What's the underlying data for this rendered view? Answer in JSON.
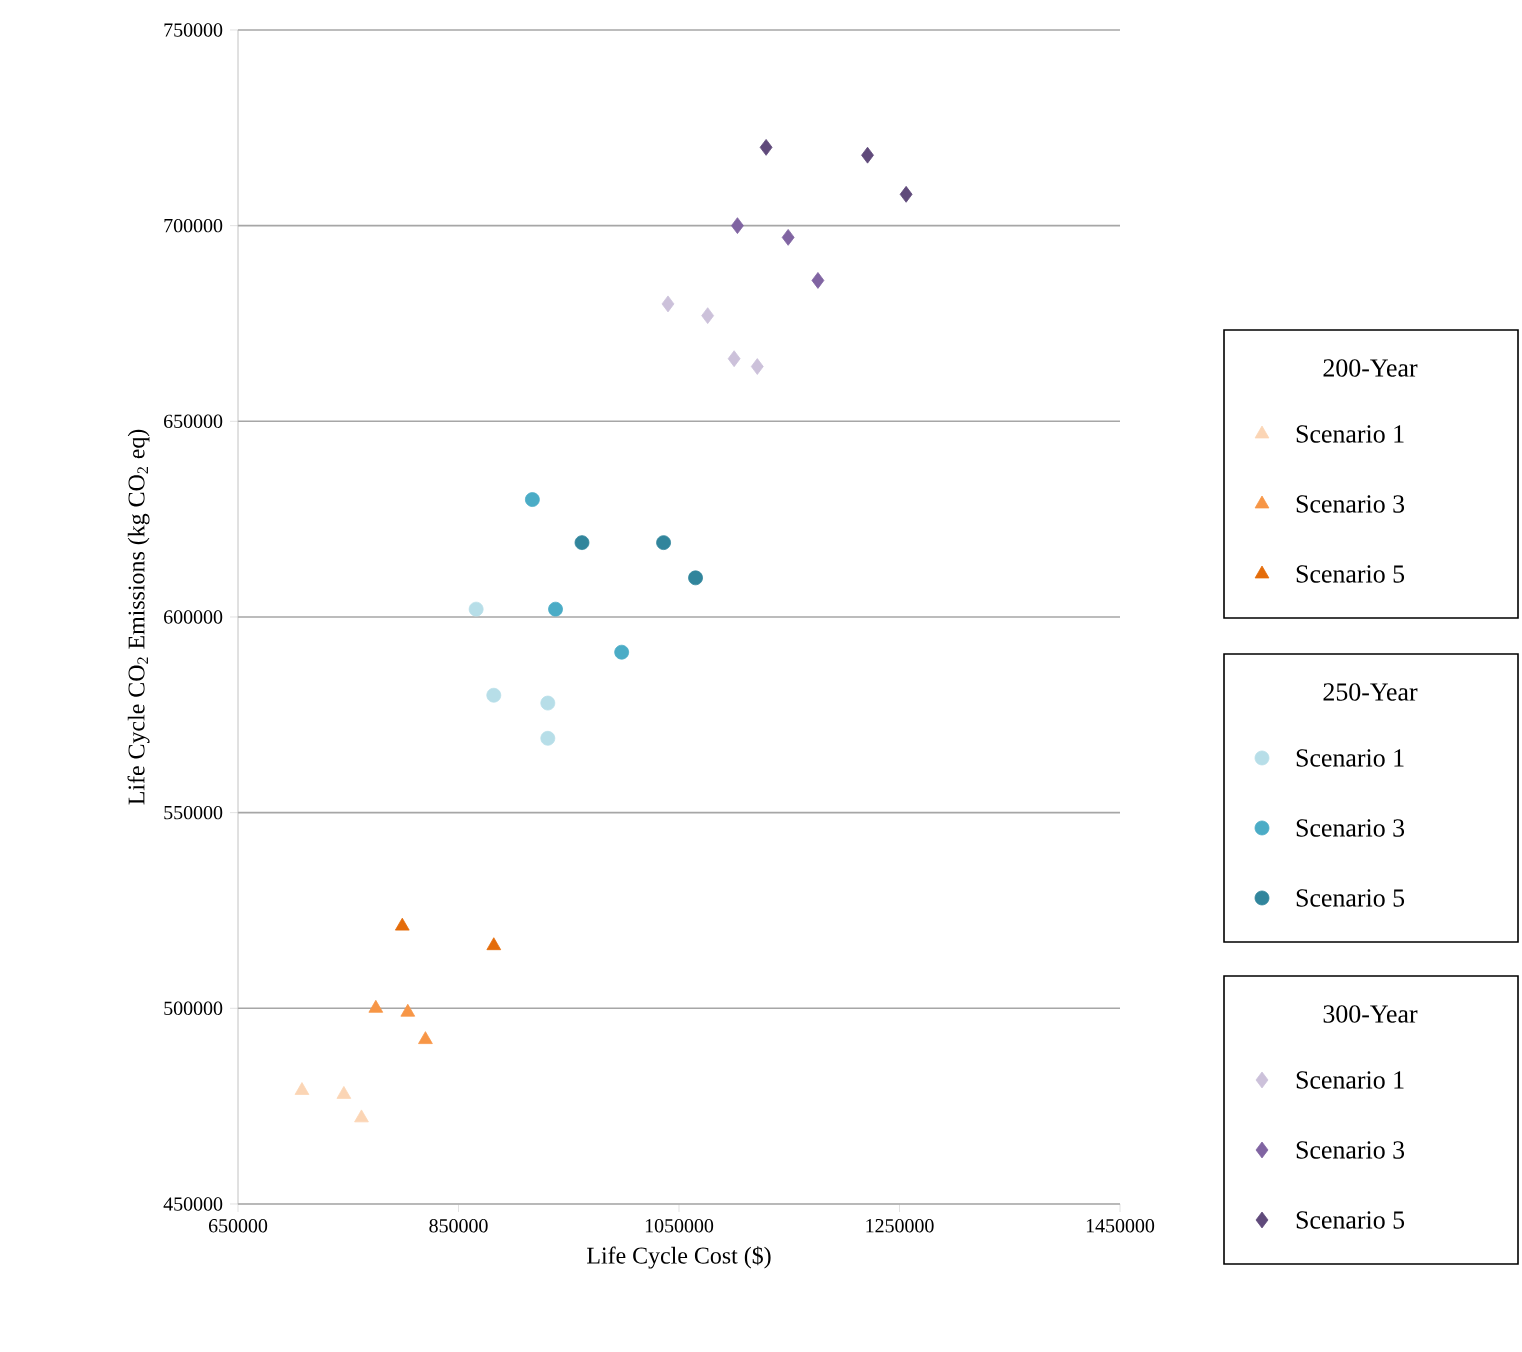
{
  "chart_data": {
    "type": "scatter",
    "xlabel": "Life Cycle Cost ($)",
    "ylabel": "Life Cycle CO$_{2}$ Emissions (kg CO$_{2}$ eq)",
    "annotations": [
      "200-Year",
      "250-Year",
      "300-Year"
    ],
    "xlim": [
      650000,
      1450000
    ],
    "xticks": [
      650000,
      850000,
      1050000,
      1250000,
      1450000
    ],
    "ylim": [
      450000,
      750000
    ],
    "yticks": [
      450000,
      500000,
      550000,
      600000,
      650000,
      700000,
      750000
    ],
    "grid": "y",
    "legend": "right",
    "series": [
      {
        "name": "Scenario 1",
        "color": "#fbd5b5",
        "marker": "triangle",
        "x": [
          708000,
          746000,
          762000
        ],
        "values": [
          479000,
          478000,
          472000
        ]
      },
      {
        "name": "Scenario 3",
        "color": "#f79646",
        "marker": "triangle",
        "x": [
          775000,
          804000,
          820000
        ],
        "values": [
          500000,
          499000,
          492000
        ]
      },
      {
        "name": "Scenario 5",
        "color": "#e46c0a",
        "marker": "triangle",
        "x": [
          799000,
          882000
        ],
        "values": [
          521000,
          516000
        ]
      },
      {
        "name": "Scenario 1",
        "color": "#b7dee8",
        "marker": "circle",
        "x": [
          866000,
          882000,
          931000,
          931000
        ],
        "values": [
          602000,
          580000,
          578000,
          569000
        ]
      },
      {
        "name": "Scenario 3",
        "color": "#4bacc6",
        "marker": "circle",
        "x": [
          917000,
          938000,
          998000
        ],
        "values": [
          630000,
          602000,
          591000
        ]
      },
      {
        "name": "Scenario 5",
        "color": "#31859c",
        "marker": "circle",
        "x": [
          962000,
          1036000,
          1065000
        ],
        "values": [
          619000,
          619000,
          610000
        ]
      },
      {
        "name": "Scenario 1",
        "color": "#ccc1da",
        "marker": "diamond",
        "x": [
          1040000,
          1076000,
          1100000,
          1121000
        ],
        "values": [
          680000,
          677000,
          666000,
          664000
        ]
      },
      {
        "name": "Scenario 3",
        "color": "#8064a2",
        "marker": "diamond",
        "x": [
          1103000,
          1149000,
          1176000
        ],
        "values": [
          700000,
          697000,
          686000
        ]
      },
      {
        "name": "Scenario 5",
        "color": "#604a7b",
        "marker": "diamond",
        "x": [
          1129000,
          1221000,
          1256000
        ],
        "values": [
          720000,
          718000,
          708000
        ]
      }
    ]
  }
}
